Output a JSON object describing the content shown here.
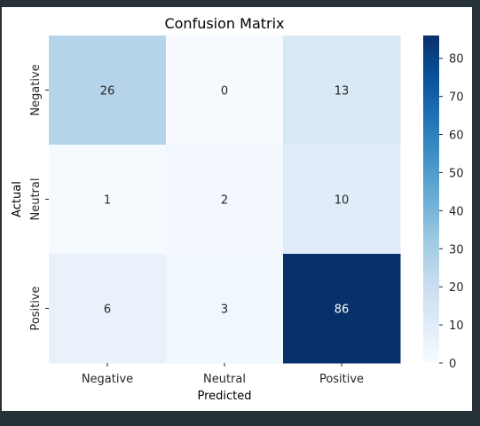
{
  "chart_data": {
    "type": "heatmap",
    "title": "Confusion Matrix",
    "xlabel": "Predicted",
    "ylabel": "Actual",
    "x_categories": [
      "Negative",
      "Neutral",
      "Positive"
    ],
    "y_categories": [
      "Negative",
      "Neutral",
      "Positive"
    ],
    "values": [
      [
        26,
        0,
        13
      ],
      [
        1,
        2,
        10
      ],
      [
        6,
        3,
        86
      ]
    ],
    "colormap": "Blues",
    "value_range": [
      0,
      86
    ],
    "colorbar_ticks": [
      "0",
      "10",
      "20",
      "30",
      "40",
      "50",
      "60",
      "70",
      "80"
    ],
    "colorbar_tick_values": [
      0,
      10,
      20,
      30,
      40,
      50,
      60,
      70,
      80
    ],
    "grid": false,
    "annotated": true
  },
  "colors": {
    "background": "#263238",
    "figure": "#ffffff"
  }
}
